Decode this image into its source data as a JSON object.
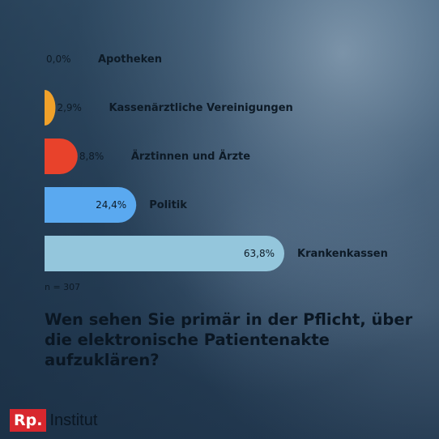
{
  "chart_data": {
    "type": "bar",
    "orientation": "horizontal",
    "categories": [
      "Apotheken",
      "Kassenärztliche Vereinigungen",
      "Ärztinnen und Ärzte",
      "Politik",
      "Krankenkassen"
    ],
    "values": [
      0.0,
      2.9,
      8.8,
      24.4,
      63.8
    ],
    "value_labels": [
      "0,0%",
      "2,9%",
      "8,8%",
      "24,4%",
      "63,8%"
    ],
    "colors": [
      "#f0a12a",
      "#f0a12a",
      "#e8422b",
      "#5aa9f0",
      "#94c6dc"
    ],
    "xlim": [
      0,
      63.8
    ],
    "grid": false,
    "legend": "none"
  },
  "sample_size": "n = 307",
  "title": "Wen sehen Sie primär in der Pflicht, über die elektronische Patientenakte aufzuklären?",
  "logo": {
    "box": "Rp.",
    "text": "Institut"
  }
}
